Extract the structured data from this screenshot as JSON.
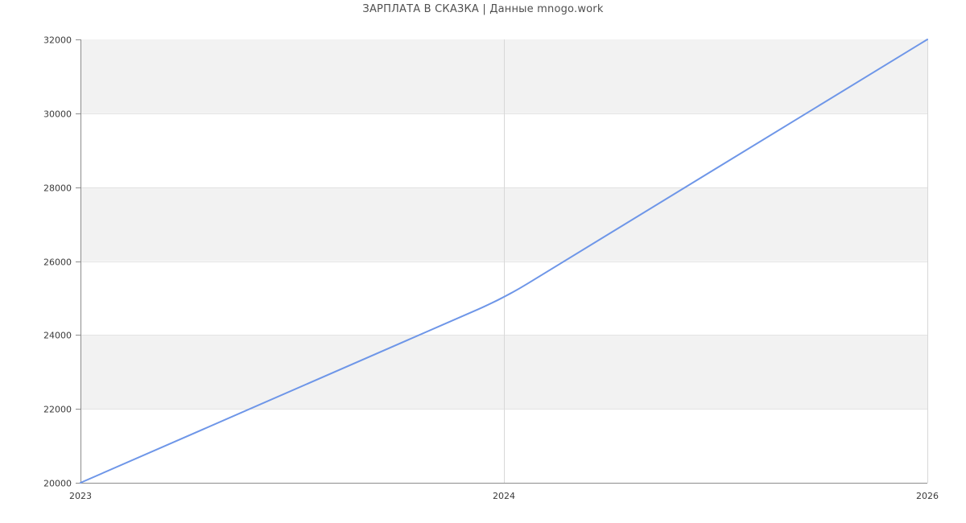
{
  "chart": {
    "title": "ЗАРПЛАТА В СКАЗКА | Данные mnogo.work"
  },
  "chart_data": {
    "type": "line",
    "title": "ЗАРПЛАТА В СКАЗКА | Данные mnogo.work",
    "categories": [
      "2023",
      "2024",
      "2026"
    ],
    "values": [
      20000,
      25000,
      32000
    ],
    "xlabel": "",
    "ylabel": "",
    "ylim": [
      20000,
      32000
    ],
    "ytick_step": 2000,
    "ytick_labels": [
      "20000",
      "22000",
      "24000",
      "26000",
      "28000",
      "30000",
      "32000"
    ],
    "legend": "none",
    "grid": {
      "horizontal": true,
      "vertical": true,
      "alternating_bands": true
    },
    "colors": {
      "line": "#6e96e8",
      "band": "#f2f2f2",
      "grid_horizontal": "#e4e4e4",
      "grid_vertical": "#d8d8d8",
      "axis": "#8c8c8c",
      "tick_label": "#3a3a3a",
      "title": "#4f4f4f",
      "background": "#ffffff"
    }
  }
}
